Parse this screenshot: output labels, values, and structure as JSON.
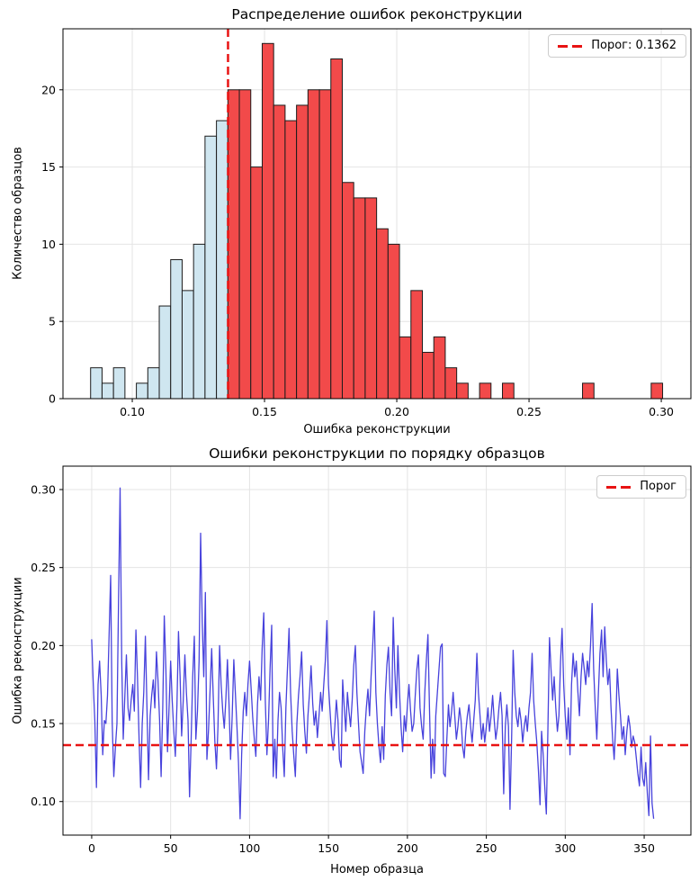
{
  "figure": {
    "background": "#ffffff"
  },
  "colors": {
    "below": "#cfe6f0",
    "above": "#f24a4a",
    "edge": "#1c1c1c",
    "threshold": "#e81313",
    "line": "#4742dc",
    "grid": "#e4e4e4",
    "spine": "#000000"
  },
  "chart_data": [
    {
      "type": "bar",
      "subtype": "histogram",
      "title": "Распределение ошибок реконструкции",
      "xlabel": "Ошибка реконструкции",
      "ylabel": "Количество образцов",
      "legend_label": "Порог: 0.1362",
      "legend_position": "upper right",
      "grid": true,
      "threshold": 0.1362,
      "bin_start": 0.08425,
      "bin_width": 0.004325,
      "n_blue_bins": 12,
      "counts": [
        2,
        1,
        2,
        0,
        1,
        2,
        6,
        9,
        7,
        10,
        17,
        18,
        20,
        20,
        15,
        23,
        19,
        18,
        19,
        20,
        20,
        22,
        14,
        13,
        13,
        11,
        10,
        4,
        7,
        3,
        4,
        2,
        1,
        0,
        1,
        0,
        1,
        0,
        0,
        0,
        0,
        0,
        0,
        1,
        0,
        0,
        0,
        0,
        0,
        1
      ],
      "xlim": [
        0.0738,
        0.3112
      ],
      "ylim": [
        0,
        23.95
      ],
      "xticks": [
        0.1,
        0.15,
        0.2,
        0.25,
        0.3
      ],
      "xtick_labels": [
        "0.10",
        "0.15",
        "0.20",
        "0.25",
        "0.30"
      ],
      "yticks": [
        0,
        5,
        10,
        15,
        20
      ],
      "ytick_labels": [
        "0",
        "5",
        "10",
        "15",
        "20"
      ]
    },
    {
      "type": "line",
      "title": "Ошибки реконструкции по порядку образцов",
      "xlabel": "Номер образца",
      "ylabel": "Ошибка реконструкции",
      "legend_label": "Порог",
      "legend_position": "upper right",
      "grid": true,
      "threshold": 0.1362,
      "xlim": [
        -18.2,
        379.6
      ],
      "ylim": [
        0.0785,
        0.315
      ],
      "xticks": [
        0,
        50,
        100,
        150,
        200,
        250,
        300,
        350
      ],
      "xtick_labels": [
        "0",
        "50",
        "100",
        "150",
        "200",
        "250",
        "300",
        "350"
      ],
      "yticks": [
        0.1,
        0.15,
        0.2,
        0.25,
        0.3
      ],
      "ytick_labels": [
        "0.10",
        "0.15",
        "0.20",
        "0.25",
        "0.30"
      ],
      "values": [
        0.204,
        0.175,
        0.152,
        0.109,
        0.175,
        0.19,
        0.168,
        0.13,
        0.152,
        0.15,
        0.168,
        0.205,
        0.245,
        0.151,
        0.116,
        0.135,
        0.15,
        0.23,
        0.301,
        0.19,
        0.14,
        0.168,
        0.194,
        0.16,
        0.152,
        0.165,
        0.175,
        0.158,
        0.21,
        0.18,
        0.14,
        0.109,
        0.15,
        0.17,
        0.206,
        0.162,
        0.114,
        0.155,
        0.168,
        0.178,
        0.16,
        0.196,
        0.178,
        0.152,
        0.116,
        0.16,
        0.219,
        0.185,
        0.132,
        0.16,
        0.19,
        0.165,
        0.145,
        0.129,
        0.162,
        0.209,
        0.18,
        0.142,
        0.165,
        0.194,
        0.17,
        0.152,
        0.103,
        0.14,
        0.18,
        0.206,
        0.14,
        0.158,
        0.19,
        0.272,
        0.215,
        0.18,
        0.234,
        0.127,
        0.146,
        0.171,
        0.198,
        0.168,
        0.139,
        0.121,
        0.148,
        0.2,
        0.175,
        0.158,
        0.147,
        0.166,
        0.191,
        0.162,
        0.127,
        0.155,
        0.191,
        0.17,
        0.148,
        0.125,
        0.089,
        0.13,
        0.158,
        0.17,
        0.155,
        0.175,
        0.19,
        0.172,
        0.154,
        0.14,
        0.129,
        0.162,
        0.18,
        0.165,
        0.198,
        0.221,
        0.165,
        0.13,
        0.152,
        0.185,
        0.213,
        0.116,
        0.14,
        0.115,
        0.152,
        0.17,
        0.16,
        0.135,
        0.116,
        0.16,
        0.185,
        0.211,
        0.17,
        0.145,
        0.13,
        0.116,
        0.15,
        0.168,
        0.18,
        0.196,
        0.162,
        0.145,
        0.131,
        0.155,
        0.17,
        0.187,
        0.163,
        0.149,
        0.158,
        0.141,
        0.155,
        0.17,
        0.158,
        0.175,
        0.19,
        0.216,
        0.175,
        0.158,
        0.142,
        0.133,
        0.148,
        0.165,
        0.152,
        0.127,
        0.122,
        0.178,
        0.16,
        0.145,
        0.17,
        0.158,
        0.148,
        0.165,
        0.187,
        0.2,
        0.17,
        0.15,
        0.132,
        0.125,
        0.118,
        0.145,
        0.16,
        0.172,
        0.155,
        0.18,
        0.2,
        0.222,
        0.17,
        0.15,
        0.135,
        0.125,
        0.148,
        0.127,
        0.168,
        0.188,
        0.199,
        0.17,
        0.155,
        0.218,
        0.185,
        0.16,
        0.2,
        0.17,
        0.148,
        0.132,
        0.155,
        0.145,
        0.162,
        0.175,
        0.158,
        0.145,
        0.15,
        0.168,
        0.185,
        0.194,
        0.16,
        0.148,
        0.14,
        0.17,
        0.19,
        0.207,
        0.16,
        0.115,
        0.14,
        0.118,
        0.155,
        0.17,
        0.185,
        0.199,
        0.201,
        0.118,
        0.116,
        0.14,
        0.162,
        0.148,
        0.158,
        0.17,
        0.155,
        0.14,
        0.148,
        0.16,
        0.152,
        0.135,
        0.128,
        0.145,
        0.155,
        0.162,
        0.148,
        0.138,
        0.152,
        0.165,
        0.195,
        0.17,
        0.155,
        0.14,
        0.15,
        0.138,
        0.148,
        0.16,
        0.145,
        0.155,
        0.168,
        0.152,
        0.14,
        0.148,
        0.16,
        0.17,
        0.155,
        0.105,
        0.148,
        0.162,
        0.148,
        0.095,
        0.14,
        0.197,
        0.17,
        0.155,
        0.148,
        0.16,
        0.152,
        0.138,
        0.148,
        0.155,
        0.145,
        0.16,
        0.17,
        0.195,
        0.165,
        0.15,
        0.138,
        0.12,
        0.098,
        0.145,
        0.13,
        0.11,
        0.092,
        0.145,
        0.205,
        0.185,
        0.165,
        0.18,
        0.16,
        0.145,
        0.155,
        0.19,
        0.211,
        0.175,
        0.155,
        0.14,
        0.16,
        0.13,
        0.175,
        0.195,
        0.18,
        0.19,
        0.17,
        0.155,
        0.18,
        0.195,
        0.185,
        0.175,
        0.19,
        0.18,
        0.2,
        0.227,
        0.185,
        0.16,
        0.14,
        0.17,
        0.195,
        0.21,
        0.18,
        0.212,
        0.19,
        0.175,
        0.185,
        0.16,
        0.14,
        0.127,
        0.15,
        0.185,
        0.168,
        0.155,
        0.14,
        0.148,
        0.13,
        0.145,
        0.155,
        0.148,
        0.135,
        0.142,
        0.138,
        0.128,
        0.118,
        0.11,
        0.135,
        0.115,
        0.11,
        0.125,
        0.105,
        0.091,
        0.142,
        0.099,
        0.089
      ]
    }
  ]
}
